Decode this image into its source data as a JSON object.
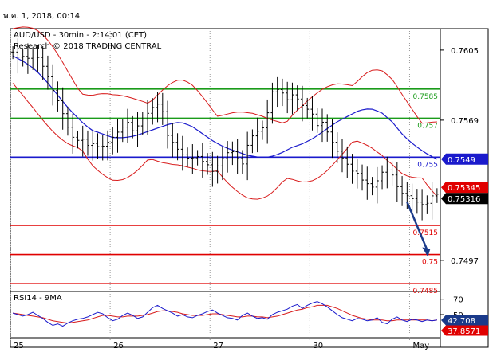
{
  "stamp": "พ.ค. 1, 2018, 00:14",
  "chart_data": {
    "type": "line",
    "title": "AUD/USD - 30min - 2:14:01 (CET)",
    "subtitle": "Research © 2018 TRADING CENTRAL",
    "price_axis": {
      "ylim": [
        0.7481,
        0.7616
      ],
      "ticks": [
        "0.7605",
        "0.7569",
        "0.7497"
      ]
    },
    "x_labels": [
      {
        "label": "25",
        "bar": 0
      },
      {
        "label": "26",
        "bar": 20
      },
      {
        "label": "27",
        "bar": 40
      },
      {
        "label": "30",
        "bar": 60
      },
      {
        "label": "May",
        "bar": 80
      }
    ],
    "bars_count": 86,
    "close": [
      0.7604,
      0.7601,
      0.7602,
      0.76,
      0.7603,
      0.7598,
      0.7592,
      0.7584,
      0.7578,
      0.757,
      0.7562,
      0.7558,
      0.756,
      0.7556,
      0.7557,
      0.7555,
      0.7556,
      0.7559,
      0.7562,
      0.7565,
      0.7568,
      0.7563,
      0.7567,
      0.7571,
      0.7574,
      0.7578,
      0.7575,
      0.7561,
      0.7557,
      0.7553,
      0.755,
      0.7549,
      0.7551,
      0.7548,
      0.7546,
      0.7542,
      0.7547,
      0.7551,
      0.7554,
      0.755,
      0.7546,
      0.7557,
      0.7562,
      0.7564,
      0.7566,
      0.7583,
      0.7585,
      0.7583,
      0.7579,
      0.7583,
      0.7578,
      0.7575,
      0.7574,
      0.7566,
      0.7568,
      0.7562,
      0.7556,
      0.7551,
      0.7548,
      0.7543,
      0.7542,
      0.7538,
      0.7536,
      0.7534,
      0.7541,
      0.7544,
      0.7542,
      0.7535,
      0.7531,
      0.753,
      0.7528,
      0.7526,
      0.7525,
      0.753,
      0.7531
    ],
    "ma_close": [
      0.7602,
      0.7599,
      0.7595,
      0.7589,
      0.7582,
      0.7575,
      0.7569,
      0.7564,
      0.7562,
      0.756,
      0.756,
      0.7561,
      0.7563,
      0.7565,
      0.7567,
      0.7568,
      0.7566,
      0.7562,
      0.7558,
      0.7555,
      0.7553,
      0.7551,
      0.755,
      0.755,
      0.7552,
      0.7555,
      0.7557,
      0.756,
      0.7564,
      0.7568,
      0.7571,
      0.7574,
      0.7575,
      0.7573,
      0.7568,
      0.7561,
      0.7556,
      0.7552,
      0.7549
    ],
    "levels": [
      {
        "value": 0.7585,
        "label": "0.7585",
        "color": "#1a9b1a"
      },
      {
        "value": 0.757,
        "label": "0.757",
        "color": "#1a9b1a"
      },
      {
        "value": 0.755,
        "label": "0.755",
        "color": "#1a1acc"
      },
      {
        "value": 0.7515,
        "label": "0.7515",
        "color": "#e00000"
      },
      {
        "value": 0.75,
        "label": "0.75",
        "color": "#e00000"
      },
      {
        "value": 0.7485,
        "label": "0.7485",
        "color": "#e00000"
      }
    ],
    "price_tags": [
      {
        "value": 0.7549,
        "label": "0.7549",
        "bg": "#1a1acc",
        "fg": "#ffffff"
      },
      {
        "value": 0.75345,
        "label": "0.75345",
        "bg": "#e00000",
        "fg": "#ffffff"
      },
      {
        "value": 0.75316,
        "label": "0.75316",
        "bg": "#000000",
        "fg": "#ffffff"
      }
    ],
    "arrow": {
      "from_bar": 79,
      "from": 0.7527,
      "to_bar": 83,
      "to": 0.75,
      "color": "#1a3a8a"
    },
    "rsi": {
      "label": "RSI14 - 9MA",
      "ylim": [
        20,
        80
      ],
      "ticks": [
        "70",
        "50"
      ],
      "values": [
        52,
        50,
        48,
        50,
        53,
        49,
        45,
        40,
        36,
        38,
        35,
        39,
        42,
        44,
        45,
        47,
        50,
        53,
        51,
        46,
        42,
        44,
        49,
        52,
        49,
        45,
        47,
        53,
        59,
        62,
        58,
        55,
        52,
        48,
        50,
        47,
        46,
        49,
        51,
        54,
        56,
        52,
        49,
        46,
        45,
        43,
        49,
        52,
        48,
        45,
        46,
        44,
        50,
        53,
        55,
        57,
        61,
        63,
        58,
        62,
        65,
        67,
        64,
        60,
        55,
        50,
        46,
        44,
        42,
        45,
        44,
        42,
        43,
        46,
        40,
        38,
        44,
        47,
        43,
        41,
        44,
        43,
        41,
        43,
        42,
        43
      ],
      "ma": [
        52,
        51,
        50,
        49,
        48,
        47,
        46,
        44,
        42,
        41,
        40,
        39,
        40,
        41,
        42,
        43,
        45,
        47,
        49,
        49,
        48,
        47,
        47,
        48,
        48,
        48,
        49,
        50,
        52,
        54,
        55,
        55,
        54,
        53,
        51,
        50,
        49,
        49,
        49,
        50,
        51,
        51,
        50,
        49,
        48,
        47,
        47,
        48,
        48,
        47,
        47,
        46,
        47,
        48,
        50,
        52,
        54,
        56,
        57,
        59,
        60,
        62,
        62,
        62,
        60,
        58,
        55,
        52,
        49,
        47,
        45,
        44,
        43,
        43,
        43,
        42,
        42,
        43,
        43,
        43,
        43,
        43,
        43,
        43,
        42,
        43
      ],
      "tags": [
        {
          "value": 42.708,
          "label": "42.708",
          "bg": "#1a3a8a",
          "fg": "#ffffff"
        },
        {
          "value": 37.8571,
          "label": "37.8571",
          "bg": "#e00000",
          "fg": "#ffffff"
        }
      ]
    }
  }
}
